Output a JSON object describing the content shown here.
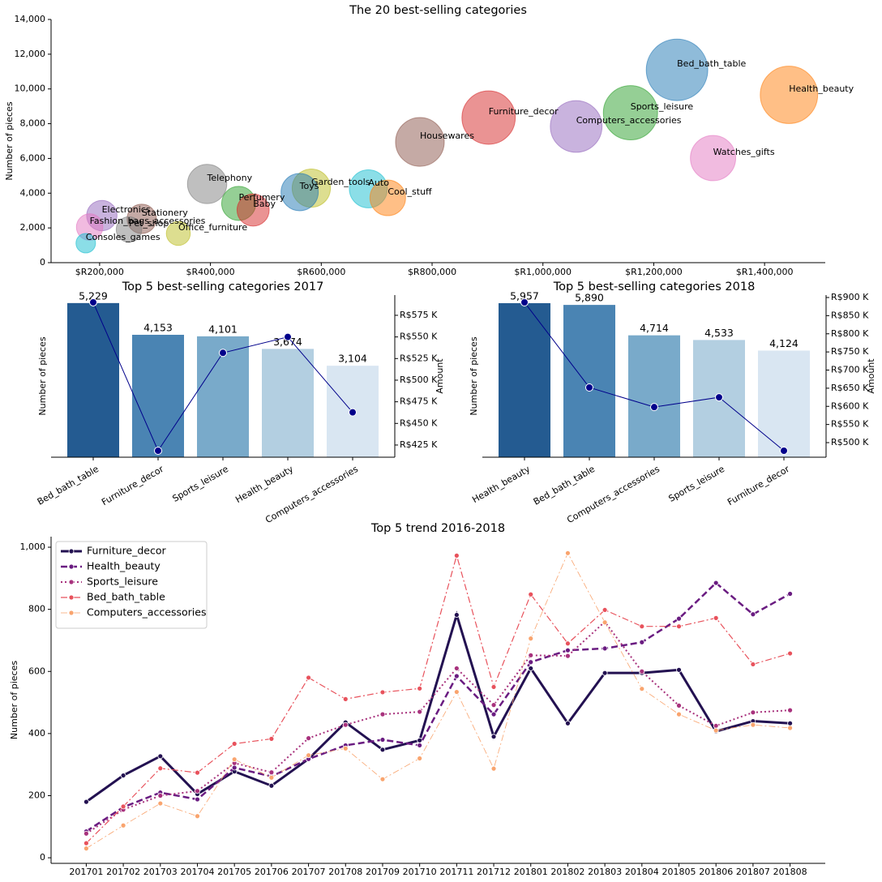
{
  "chart_data": [
    {
      "type": "bubble",
      "title": "The 20 best-selling categories",
      "y_label": "Number of pieces",
      "categories": [
        "Bed_bath_table",
        "Health_beauty",
        "Sports_leisure",
        "Furniture_decor",
        "Computers_accessories",
        "Housewares",
        "Watches_gifts",
        "Telephony",
        "Garden_tools",
        "Auto",
        "Toys",
        "Cool_stuff",
        "Perfumery",
        "Baby",
        "Electronics",
        "Stationery",
        "Fashion_bags_accessories",
        "Pet_shop",
        "Office_furniture",
        "Consoles_games"
      ],
      "x": [
        1242000,
        1444000,
        1158000,
        902000,
        1060000,
        778000,
        1307000,
        394000,
        582000,
        685000,
        561000,
        720000,
        451000,
        477000,
        204000,
        276000,
        182000,
        253000,
        342000,
        175000
      ],
      "values": [
        11100,
        9660,
        8630,
        8350,
        7840,
        6950,
        6020,
        4530,
        4290,
        4250,
        4060,
        3730,
        3410,
        3030,
        2710,
        2520,
        2050,
        1910,
        1680,
        1120
      ],
      "colors": [
        "#1f77b4",
        "#ff7f0e",
        "#2ca02c",
        "#d62728",
        "#9467bd",
        "#8c564b",
        "#e377c2",
        "#7f7f7f",
        "#bcbd22",
        "#17becf",
        "#1f77b4",
        "#ff7f0e",
        "#2ca02c",
        "#d62728",
        "#9467bd",
        "#8c564b",
        "#e377c2",
        "#7f7f7f",
        "#bcbd22",
        "#17becf"
      ],
      "xlim": [
        112400,
        1509500
      ],
      "xticks": [
        {
          "value": 200000,
          "label": "$R200,000"
        },
        {
          "value": 400000,
          "label": "$R400,000"
        },
        {
          "value": 600000,
          "label": "$R600,000"
        },
        {
          "value": 800000,
          "label": "$R800,000"
        },
        {
          "value": 1000000,
          "label": "$R1,000,000"
        },
        {
          "value": 1200000,
          "label": "$R1,200,000"
        },
        {
          "value": 1400000,
          "label": "$R1,400,000"
        }
      ],
      "ylim": [
        0,
        14000
      ],
      "yticks": [
        0,
        {
          "value": 2000,
          "label": "2,000"
        },
        {
          "value": 4000,
          "label": "4,000"
        },
        {
          "value": 6000,
          "label": "6,000"
        },
        {
          "value": 8000,
          "label": "8,000"
        },
        {
          "value": 10000,
          "label": "10,000"
        },
        {
          "value": 12000,
          "label": "12,000"
        },
        {
          "value": 14000,
          "label": "14,000"
        }
      ]
    },
    {
      "type": "combo",
      "title": "Top 5 best-selling categories 2017",
      "y_label": "Number of pieces",
      "y2_label": "Amount",
      "categories": [
        "Bed_bath_table",
        "Furniture_decor",
        "Sports_leisure",
        "Health_beauty",
        "Computers_accessories"
      ],
      "series": [
        {
          "type": "bar",
          "values": [
            5229,
            4153,
            4101,
            3674,
            3104
          ],
          "value_labels": [
            "5,229",
            "4,153",
            "4,101",
            "3,674",
            "3,104"
          ],
          "colors": [
            "#245b91",
            "#4a84b3",
            "#79aaca",
            "#b3cfe1",
            "#d9e6f2"
          ]
        },
        {
          "type": "line",
          "axis": "y2",
          "values": [
            590000,
            418400,
            531600,
            550000,
            462800
          ],
          "color": "#00008b"
        }
      ],
      "ylim": [
        0,
        5500
      ],
      "y2lim": [
        410900,
        598400
      ],
      "y2ticks": [
        {
          "value": 425000,
          "label": "R$425 K"
        },
        {
          "value": 450000,
          "label": "R$450 K"
        },
        {
          "value": 475000,
          "label": "R$475 K"
        },
        {
          "value": 500000,
          "label": "R$500 K"
        },
        {
          "value": 525000,
          "label": "R$525 K"
        },
        {
          "value": 550000,
          "label": "R$550 K"
        },
        {
          "value": 575000,
          "label": "R$575 K"
        }
      ]
    },
    {
      "type": "combo",
      "title": "Top 5 best-selling categories 2018",
      "y_label": "Number of pieces",
      "y2_label": "Amount",
      "categories": [
        "Health_beauty",
        "Bed_bath_table",
        "Computers_accessories",
        "Sports_leisure",
        "Furniture_decor"
      ],
      "series": [
        {
          "type": "bar",
          "values": [
            5957,
            5890,
            4714,
            4533,
            4124
          ],
          "value_labels": [
            "5,957",
            "5,890",
            "4,714",
            "4,533",
            "4,124"
          ],
          "colors": [
            "#245b91",
            "#4a84b3",
            "#79aaca",
            "#b3cfe1",
            "#d9e6f2"
          ]
        },
        {
          "type": "line",
          "axis": "y2",
          "values": [
            886600,
            652000,
            598000,
            625000,
            477700
          ],
          "color": "#00008b"
        }
      ],
      "ylim": [
        0,
        6270
      ],
      "y2lim": [
        459800,
        906700
      ],
      "y2ticks": [
        {
          "value": 500000,
          "label": "R$500 K"
        },
        {
          "value": 550000,
          "label": "R$550 K"
        },
        {
          "value": 600000,
          "label": "R$600 K"
        },
        {
          "value": 650000,
          "label": "R$650 K"
        },
        {
          "value": 700000,
          "label": "R$700 K"
        },
        {
          "value": 750000,
          "label": "R$750 K"
        },
        {
          "value": 800000,
          "label": "R$800 K"
        },
        {
          "value": 850000,
          "label": "R$850 K"
        },
        {
          "value": 900000,
          "label": "R$900 K"
        }
      ]
    },
    {
      "type": "line",
      "title": "Top 5 trend 2016-2018",
      "y_label": "Number of pieces",
      "legend": "upper left",
      "categories": [
        "201701",
        "201702",
        "201703",
        "201704",
        "201705",
        "201706",
        "201707",
        "201708",
        "201709",
        "201710",
        "201711",
        "201712",
        "201801",
        "201802",
        "201803",
        "201804",
        "201805",
        "201806",
        "201807",
        "201808"
      ],
      "series": [
        {
          "name": "Furniture_decor",
          "color": "#231151",
          "linestyle": "solid",
          "linewidth": 3,
          "values": [
            180,
            265,
            327,
            205,
            278,
            232,
            318,
            436,
            348,
            378,
            782,
            390,
            610,
            433,
            595,
            595,
            605,
            407,
            440,
            433
          ]
        },
        {
          "name": "Health_beauty",
          "color": "#6a1c81",
          "linestyle": "dashed",
          "linewidth": 2.5,
          "values": [
            85,
            163,
            210,
            188,
            290,
            262,
            318,
            362,
            380,
            362,
            585,
            462,
            630,
            668,
            674,
            694,
            770,
            885,
            784,
            850
          ]
        },
        {
          "name": "Sports_leisure",
          "color": "#a8327d",
          "linestyle": "dotted",
          "linewidth": 2,
          "values": [
            78,
            155,
            200,
            215,
            305,
            275,
            385,
            428,
            462,
            470,
            610,
            492,
            652,
            650,
            760,
            600,
            490,
            425,
            468,
            475
          ]
        },
        {
          "name": "Bed_bath_table",
          "color": "#e8525c",
          "linestyle": "dashdot",
          "linewidth": 1.2,
          "values": [
            47,
            165,
            288,
            274,
            367,
            383,
            580,
            511,
            533,
            545,
            973,
            550,
            848,
            690,
            798,
            745,
            745,
            772,
            623,
            658
          ]
        },
        {
          "name": "Computers_accessories",
          "color": "#f9a46e",
          "linestyle": "dashdot",
          "linewidth": 0.8,
          "values": [
            30,
            104,
            175,
            134,
            317,
            258,
            330,
            352,
            253,
            320,
            534,
            287,
            706,
            981,
            758,
            544,
            462,
            410,
            428,
            418
          ]
        }
      ],
      "ylim": [
        -18,
        1034
      ],
      "yticks": [
        0,
        200,
        400,
        600,
        800,
        {
          "value": 1000,
          "label": "1,000"
        }
      ]
    }
  ]
}
